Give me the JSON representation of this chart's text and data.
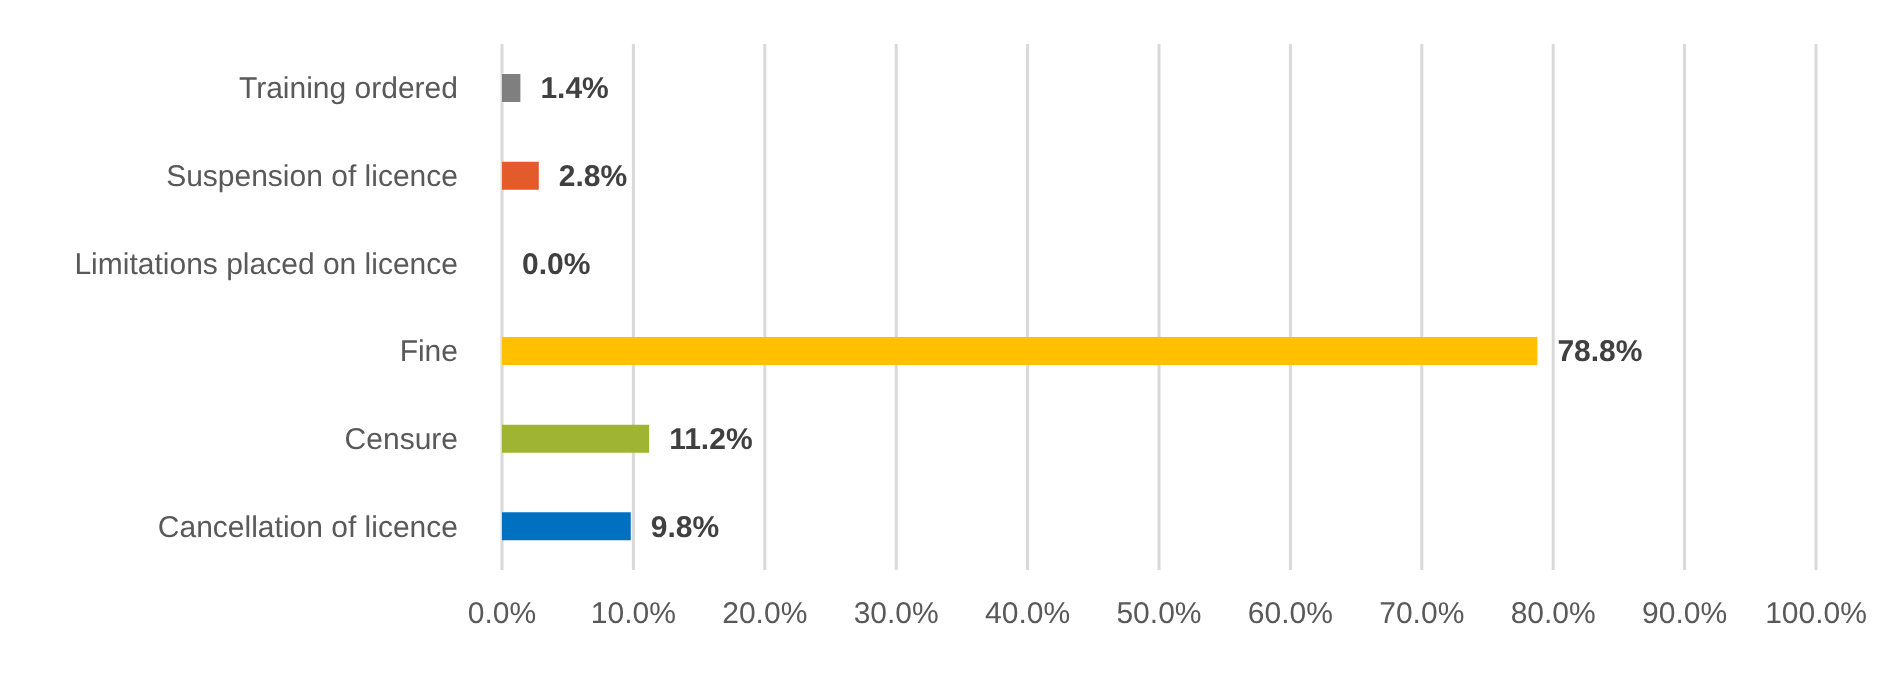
{
  "chart_data": {
    "type": "bar",
    "orientation": "horizontal",
    "categories": [
      "Training ordered",
      "Suspension of licence",
      "Limitations placed on licence",
      "Fine",
      "Censure",
      "Cancellation of licence"
    ],
    "values": [
      1.4,
      2.8,
      0.0,
      78.8,
      11.2,
      9.8
    ],
    "colors": [
      "#7f7f7f",
      "#e35a2b",
      "#4472c4",
      "#ffc000",
      "#9fb433",
      "#0070c0"
    ],
    "value_labels": [
      "1.4%",
      "2.8%",
      "0.0%",
      "78.8%",
      "11.2%",
      "9.8%"
    ],
    "xlim": [
      0,
      100
    ],
    "xticks": [
      {
        "value": 0,
        "label": "0.0%"
      },
      {
        "value": 10,
        "label": "10.0%"
      },
      {
        "value": 20,
        "label": "20.0%"
      },
      {
        "value": 30,
        "label": "30.0%"
      },
      {
        "value": 40,
        "label": "40.0%"
      },
      {
        "value": 50,
        "label": "50.0%"
      },
      {
        "value": 60,
        "label": "60.0%"
      },
      {
        "value": 70,
        "label": "70.0%"
      },
      {
        "value": 80,
        "label": "80.0%"
      },
      {
        "value": 90,
        "label": "90.0%"
      },
      {
        "value": 100,
        "label": "100.0%"
      }
    ],
    "grid": "x"
  }
}
